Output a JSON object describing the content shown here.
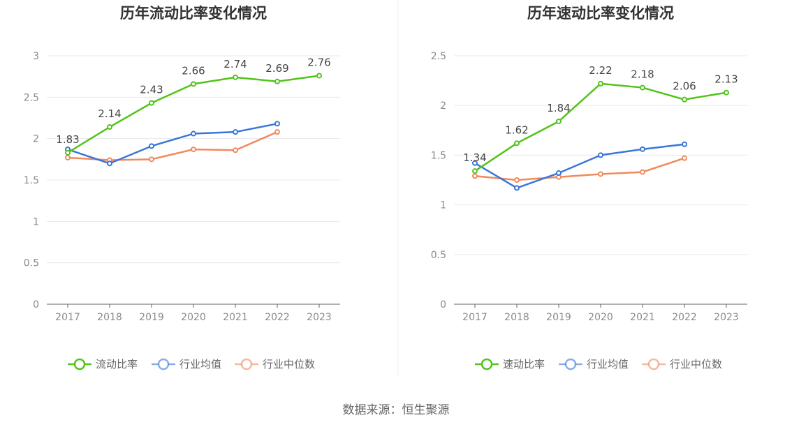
{
  "source": "数据来源：恒生聚源",
  "chart_data": [
    {
      "type": "line",
      "title": "历年流动比率变化情况",
      "categories": [
        "2017",
        "2018",
        "2019",
        "2020",
        "2021",
        "2022",
        "2023"
      ],
      "ylim": [
        0,
        3
      ],
      "yticks": [
        0,
        0.5,
        1,
        1.5,
        2,
        2.5,
        3
      ],
      "grid": true,
      "legend": "bottom",
      "series": [
        {
          "name": "流动比率",
          "color": "#52c41a",
          "values": [
            1.83,
            2.14,
            2.43,
            2.66,
            2.74,
            2.69,
            2.76
          ],
          "labels": true
        },
        {
          "name": "行业均值",
          "color": "#3a76d8",
          "values": [
            1.87,
            1.7,
            1.91,
            2.06,
            2.08,
            2.18,
            null
          ]
        },
        {
          "name": "行业中位数",
          "color": "#f08a5d",
          "values": [
            1.77,
            1.74,
            1.75,
            1.87,
            1.86,
            2.08,
            null
          ]
        }
      ]
    },
    {
      "type": "line",
      "title": "历年速动比率变化情况",
      "categories": [
        "2017",
        "2018",
        "2019",
        "2020",
        "2021",
        "2022",
        "2023"
      ],
      "ylim": [
        0,
        2.5
      ],
      "yticks": [
        0,
        0.5,
        1,
        1.5,
        2,
        2.5
      ],
      "grid": true,
      "legend": "bottom",
      "series": [
        {
          "name": "速动比率",
          "color": "#52c41a",
          "values": [
            1.34,
            1.62,
            1.84,
            2.22,
            2.18,
            2.06,
            2.13
          ],
          "labels": true
        },
        {
          "name": "行业均值",
          "color": "#3a76d8",
          "values": [
            1.42,
            1.17,
            1.32,
            1.5,
            1.56,
            1.61,
            null
          ]
        },
        {
          "name": "行业中位数",
          "color": "#f08a5d",
          "values": [
            1.29,
            1.25,
            1.28,
            1.31,
            1.33,
            1.47,
            null
          ]
        }
      ]
    }
  ]
}
